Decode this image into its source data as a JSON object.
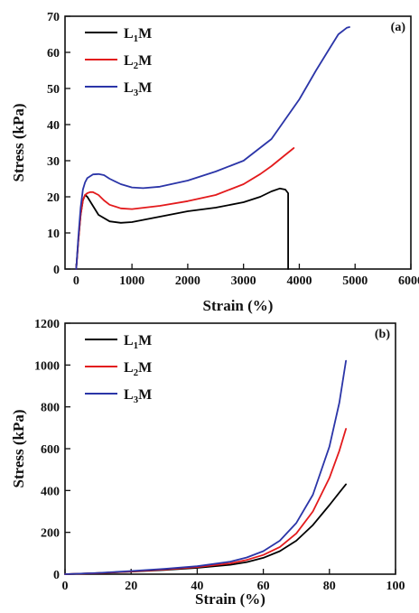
{
  "chart_data": [
    {
      "type": "line",
      "panel_label": "(a)",
      "xlabel": "Strain (%)",
      "ylabel": "Stress (kPa)",
      "xlim": [
        -200,
        6000
      ],
      "ylim": [
        0,
        70
      ],
      "xticks": [
        0,
        1000,
        2000,
        3000,
        4000,
        5000,
        6000
      ],
      "yticks": [
        0,
        10,
        20,
        30,
        40,
        50,
        60,
        70
      ],
      "grid": false,
      "legend_position": "top-left",
      "series": [
        {
          "name": "L",
          "subscript": "1",
          "suffix": "M",
          "color": "#000000",
          "x": [
            0,
            40,
            80,
            120,
            160,
            200,
            300,
            400,
            600,
            800,
            1000,
            1500,
            2000,
            2500,
            3000,
            3300,
            3500,
            3650,
            3750,
            3800,
            3800
          ],
          "y": [
            0,
            8,
            15,
            19,
            20.5,
            20,
            17.5,
            15,
            13.2,
            12.8,
            13,
            14.5,
            16,
            17,
            18.5,
            20,
            21.5,
            22.3,
            22,
            21,
            0
          ]
        },
        {
          "name": "L",
          "subscript": "2",
          "suffix": "M",
          "color": "#e31a1c",
          "x": [
            0,
            40,
            80,
            120,
            160,
            200,
            250,
            300,
            400,
            500,
            600,
            800,
            1000,
            1500,
            2000,
            2500,
            3000,
            3300,
            3500,
            3700,
            3900
          ],
          "y": [
            0,
            8,
            15,
            19,
            20.5,
            21,
            21.3,
            21.3,
            20.5,
            19,
            17.8,
            16.8,
            16.6,
            17.5,
            18.8,
            20.5,
            23.5,
            26.3,
            28.5,
            31,
            33.5
          ]
        },
        {
          "name": "L",
          "subscript": "3",
          "suffix": "M",
          "color": "#2b35a8",
          "x": [
            0,
            40,
            80,
            120,
            160,
            200,
            300,
            400,
            500,
            600,
            800,
            1000,
            1200,
            1500,
            2000,
            2500,
            3000,
            3500,
            4000,
            4300,
            4500,
            4700,
            4850,
            4900
          ],
          "y": [
            0,
            9,
            17,
            22,
            24,
            25.2,
            26.2,
            26.3,
            26,
            25,
            23.5,
            22.6,
            22.4,
            22.8,
            24.5,
            27,
            30,
            36,
            47,
            55,
            60,
            65,
            66.8,
            67
          ]
        }
      ]
    },
    {
      "type": "line",
      "panel_label": "(b)",
      "xlabel": "Strain (%)",
      "ylabel": "Stress (kPa)",
      "xlim": [
        0,
        100
      ],
      "ylim": [
        0,
        1200
      ],
      "xticks": [
        0,
        20,
        40,
        60,
        80,
        100
      ],
      "yticks": [
        0,
        200,
        400,
        600,
        800,
        1000,
        1200
      ],
      "grid": false,
      "legend_position": "top-left",
      "series": [
        {
          "name": "L",
          "subscript": "1",
          "suffix": "M",
          "color": "#000000",
          "x": [
            0,
            10,
            20,
            30,
            40,
            50,
            55,
            60,
            65,
            70,
            75,
            80,
            83,
            85
          ],
          "y": [
            0,
            5,
            12,
            20,
            30,
            45,
            58,
            78,
            110,
            160,
            235,
            330,
            390,
            430
          ]
        },
        {
          "name": "L",
          "subscript": "2",
          "suffix": "M",
          "color": "#e31a1c",
          "x": [
            0,
            10,
            20,
            30,
            40,
            50,
            55,
            60,
            65,
            70,
            75,
            80,
            83,
            85
          ],
          "y": [
            0,
            5,
            13,
            22,
            34,
            52,
            68,
            92,
            130,
            195,
            300,
            460,
            590,
            695
          ]
        },
        {
          "name": "L",
          "subscript": "3",
          "suffix": "M",
          "color": "#2b35a8",
          "x": [
            0,
            10,
            20,
            30,
            40,
            50,
            55,
            60,
            65,
            70,
            75,
            80,
            83,
            85
          ],
          "y": [
            0,
            6,
            15,
            25,
            38,
            60,
            80,
            110,
            160,
            245,
            380,
            610,
            820,
            1020
          ]
        }
      ]
    }
  ]
}
